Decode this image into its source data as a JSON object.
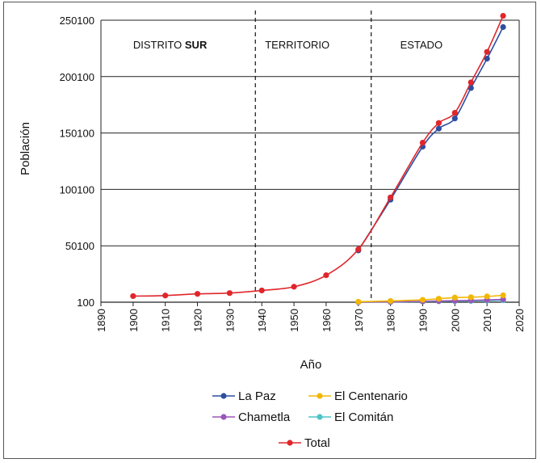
{
  "chart_data": {
    "type": "line",
    "title": "",
    "xlabel": "Año",
    "ylabel": "Población",
    "xlim": [
      1890,
      2020
    ],
    "ylim": [
      100,
      250100
    ],
    "x_ticks": [
      1890,
      1900,
      1910,
      1920,
      1930,
      1940,
      1950,
      1960,
      1970,
      1980,
      1990,
      2000,
      2010,
      2020
    ],
    "y_ticks": [
      100,
      50100,
      100100,
      150100,
      200100,
      250100
    ],
    "grid": "horizontal",
    "legend_position": "bottom",
    "dividers": [
      1938,
      1974
    ],
    "regions": [
      {
        "label": "DISTRITO ",
        "label_bold": "SUR",
        "x": 1900
      },
      {
        "label": "TERRITORIO",
        "label_bold": "",
        "x": 1941
      },
      {
        "label": "ESTADO",
        "label_bold": "",
        "x": 1983
      }
    ],
    "series": [
      {
        "name": "La Paz",
        "color": "#2e4fa0",
        "x": [
          1970,
          1980,
          1990,
          1995,
          2000,
          2005,
          2010,
          2015
        ],
        "y": [
          46000,
          91000,
          138000,
          154000,
          163000,
          190000,
          216000,
          244000
        ]
      },
      {
        "name": "El Centenario",
        "color": "#f2b705",
        "x": [
          1970,
          1980,
          1990,
          1995,
          2000,
          2005,
          2010,
          2015
        ],
        "y": [
          500,
          1200,
          2200,
          3200,
          4200,
          4500,
          5200,
          6200
        ]
      },
      {
        "name": "Chametla",
        "color": "#9a56b8",
        "x": [
          1970,
          1980,
          1990,
          1995,
          2000,
          2005,
          2010,
          2015
        ],
        "y": [
          200,
          400,
          900,
          1200,
          1400,
          1700,
          2100,
          2600
        ]
      },
      {
        "name": "El Comitán",
        "color": "#4cc5c9",
        "x": [
          1970,
          1980,
          1990,
          1995,
          2000,
          2005,
          2010,
          2015
        ],
        "y": [
          100,
          300,
          700,
          900,
          1100,
          1200,
          1500,
          1800
        ]
      },
      {
        "name": "Total",
        "color": "#e0262b",
        "x": [
          1900,
          1910,
          1920,
          1930,
          1940,
          1950,
          1960,
          1970,
          1980,
          1990,
          1995,
          2000,
          2005,
          2010,
          2015
        ],
        "y": [
          5500,
          6000,
          7500,
          8200,
          10500,
          13800,
          24000,
          47000,
          93000,
          141500,
          159000,
          168000,
          195000,
          222000,
          254000
        ]
      }
    ],
    "legend_rows": [
      [
        "La Paz",
        "El Centenario"
      ],
      [
        "Chametla",
        "El Comitán"
      ],
      [
        "Total"
      ]
    ]
  }
}
